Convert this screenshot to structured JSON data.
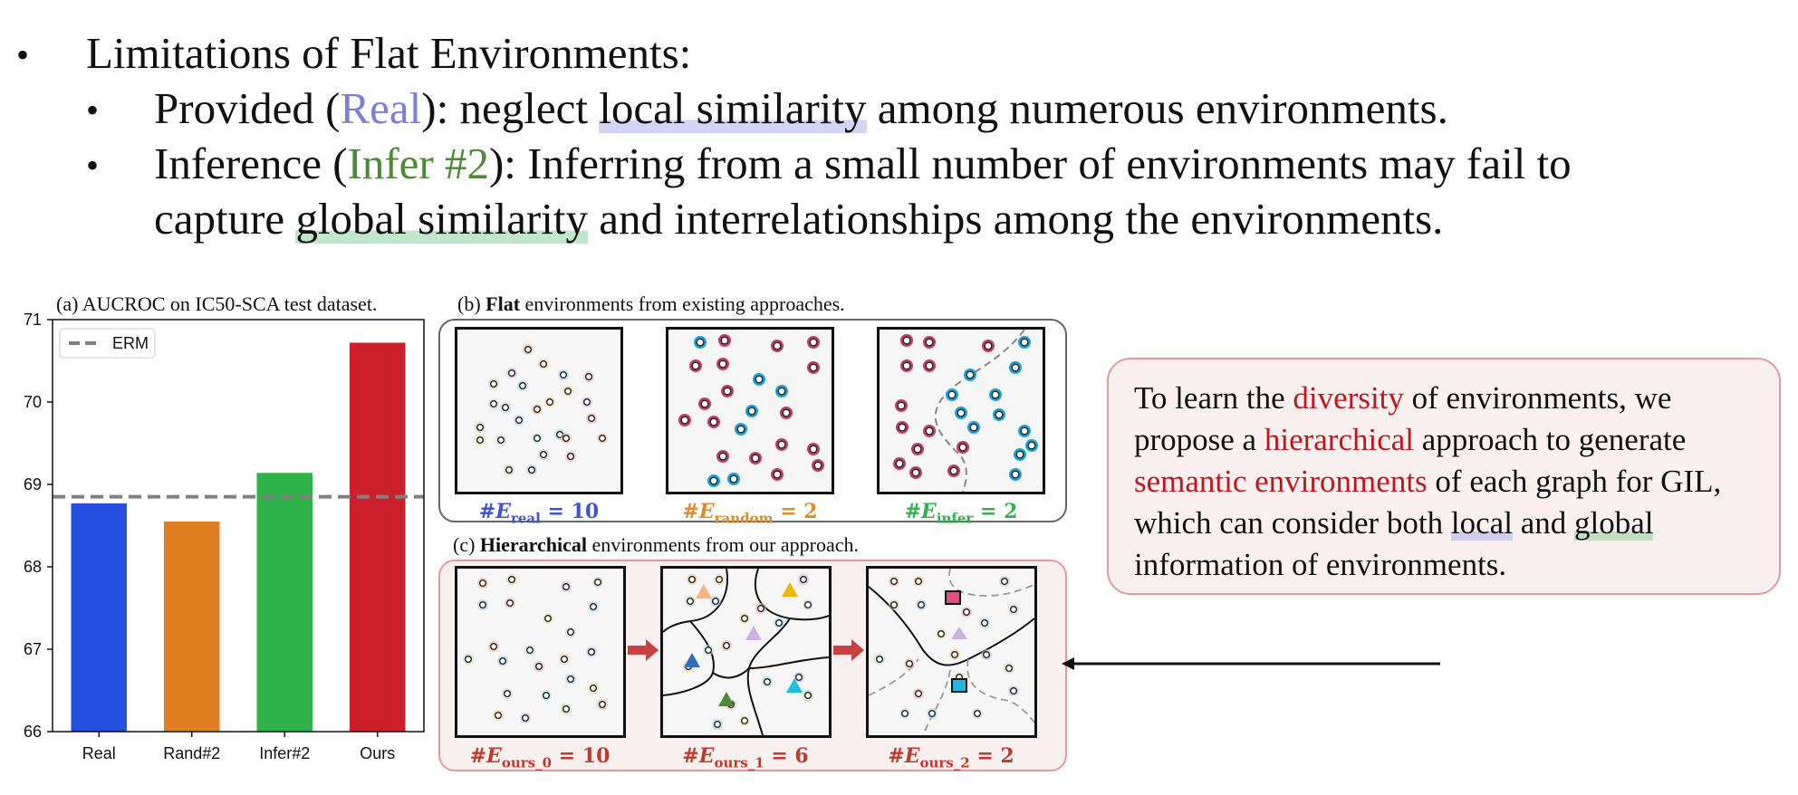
{
  "bullets": {
    "main": "Limitations of Flat Environments:",
    "provided_pre": "Provided (",
    "provided_real": "Real",
    "provided_mid": "): neglect ",
    "provided_hl": "local similarity",
    "provided_post": " among numerous environments.",
    "infer_pre": "Inference (",
    "infer_tag": "Infer #2",
    "infer_post": "): Inferring from a small number of environments may fail to",
    "infer_line2_pre": "capture ",
    "infer_line2_hl": "global similarity",
    "infer_line2_post": " and interrelationships among the environments."
  },
  "panels": {
    "a_title": "(a) AUCROC on IC50-SCA test dataset.",
    "b_prefix": "(b) ",
    "b_bold": "Flat",
    "b_suffix": " environments from existing approaches.",
    "c_prefix": "(c) ",
    "c_bold": "Hierarchical",
    "c_suffix": " environments from our approach."
  },
  "flat_labels": {
    "real": {
      "sym": "#",
      "E": "E",
      "sub": "real",
      "val": " = 10",
      "color": "#3a55d6"
    },
    "random": {
      "sym": "#",
      "E": "E",
      "sub": "random",
      "val": " = 2",
      "color": "#e08a2a"
    },
    "infer": {
      "sym": "#",
      "E": "E",
      "sub": "infer",
      "val": " = 2",
      "color": "#33b24a"
    }
  },
  "hier_labels": {
    "ours0": {
      "sym": "#",
      "E": "E",
      "sub": "ours_0",
      "val": " = 10",
      "color": "#c0392b"
    },
    "ours1": {
      "sym": "#",
      "E": "E",
      "sub": "ours_1",
      "val": " = 6",
      "color": "#c0392b"
    },
    "ours2": {
      "sym": "#",
      "E": "E",
      "sub": "ours_2",
      "val": " = 2",
      "color": "#c0392b"
    }
  },
  "callout": {
    "t1": "To learn the ",
    "r1": "diversity",
    "t2": " of environments, we propose a ",
    "r2": "hierarchical",
    "t3": " approach to generate ",
    "r3": "semantic environments",
    "t4": " of each graph for GIL, which can consider both ",
    "hl_local": "local",
    "t5": " and ",
    "hl_global": "global",
    "t6": " information of environments."
  },
  "chart_data": {
    "type": "bar",
    "title": "(a) AUCROC on IC50-SCA test dataset.",
    "categories": [
      "Real",
      "Rand#2",
      "Infer#2",
      "Ours"
    ],
    "values": [
      68.77,
      68.55,
      69.14,
      70.72
    ],
    "colors": [
      "#2350de",
      "#e07e22",
      "#2fb24a",
      "#cc1f2b"
    ],
    "ylim": [
      66,
      71
    ],
    "yticks": [
      "66",
      "67",
      "68",
      "69",
      "70",
      "71"
    ],
    "reference_line": {
      "name": "ERM",
      "value": 68.85,
      "style": "dashed",
      "color": "#808080"
    },
    "legend": "top-left",
    "xlabel": "",
    "ylabel": ""
  }
}
